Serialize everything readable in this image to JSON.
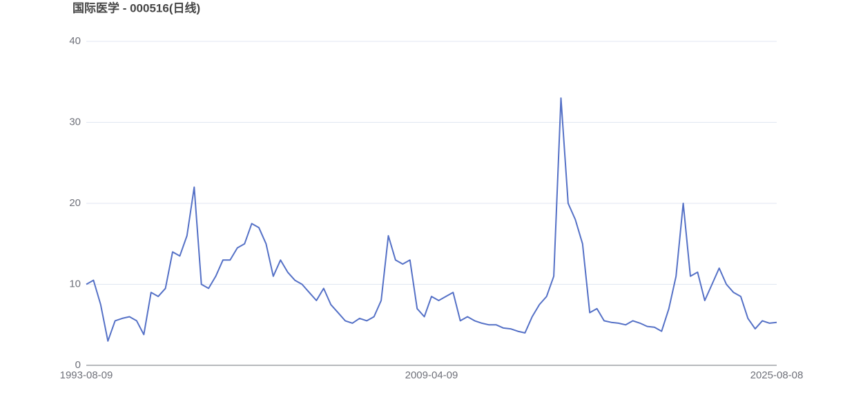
{
  "chart_data": {
    "type": "line",
    "title": "国际医学 - 000516(日线)",
    "categories": [
      "1993-08-09",
      null,
      null,
      null,
      null,
      null,
      null,
      null,
      null,
      null,
      null,
      null,
      null,
      null,
      null,
      null,
      null,
      null,
      null,
      null,
      null,
      null,
      null,
      null,
      null,
      null,
      null,
      null,
      null,
      null,
      null,
      null,
      null,
      null,
      null,
      null,
      null,
      null,
      null,
      null,
      null,
      null,
      null,
      null,
      null,
      null,
      null,
      null,
      "2009-04-09",
      null,
      null,
      null,
      null,
      null,
      null,
      null,
      null,
      null,
      null,
      null,
      null,
      null,
      null,
      null,
      null,
      null,
      null,
      null,
      null,
      null,
      null,
      null,
      null,
      null,
      null,
      null,
      null,
      null,
      null,
      null,
      null,
      null,
      null,
      null,
      null,
      null,
      null,
      null,
      null,
      null,
      null,
      null,
      null,
      null,
      null,
      null,
      "2025-08-08"
    ],
    "values": [
      10,
      10.5,
      7.5,
      3,
      5.5,
      5.8,
      6,
      5.5,
      3.8,
      9,
      8.5,
      9.5,
      14,
      13.5,
      16,
      22,
      10,
      9.5,
      11,
      13,
      13,
      14.5,
      15,
      17.5,
      17,
      15,
      11,
      13,
      11.5,
      10.5,
      10,
      9,
      8,
      9.5,
      7.5,
      6.5,
      5.5,
      5.2,
      5.8,
      5.5,
      6,
      8,
      16,
      13,
      12.5,
      13,
      7,
      6,
      8.5,
      8,
      8.5,
      9,
      5.5,
      6,
      5.5,
      5.2,
      5,
      5,
      4.6,
      4.5,
      4.2,
      4,
      6,
      7.5,
      8.5,
      11,
      33,
      20,
      18,
      15,
      6.5,
      7,
      5.5,
      5.3,
      5.2,
      5,
      5.5,
      5.2,
      4.8,
      4.7,
      4.2,
      7,
      11,
      20,
      11,
      11.5,
      8,
      10,
      12,
      10,
      9,
      8.5,
      5.8,
      4.5,
      5.5,
      5.2,
      5.3
    ],
    "color": "#5470c6",
    "ylim": [
      0,
      40
    ],
    "yticks": [
      0,
      10,
      20,
      30,
      40
    ],
    "grid": true
  }
}
